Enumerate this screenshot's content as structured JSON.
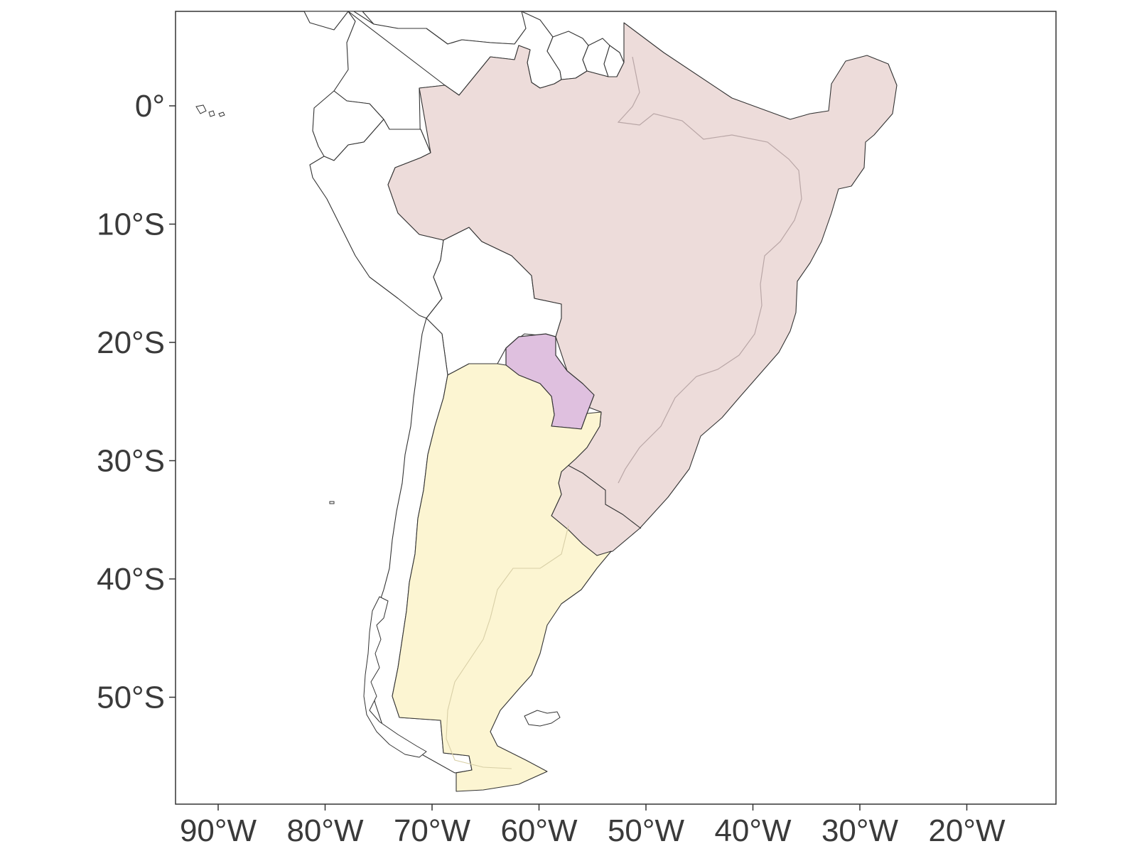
{
  "map": {
    "axes": {
      "x": {
        "ticks": [
          {
            "lon": -90,
            "label": "90°W"
          },
          {
            "lon": -80,
            "label": "80°W"
          },
          {
            "lon": -70,
            "label": "70°W"
          },
          {
            "lon": -60,
            "label": "60°W"
          },
          {
            "lon": -50,
            "label": "50°W"
          },
          {
            "lon": -40,
            "label": "40°W"
          },
          {
            "lon": -30,
            "label": "30°W"
          },
          {
            "lon": -20,
            "label": "20°W"
          }
        ]
      },
      "y": {
        "ticks": [
          {
            "lat": 0,
            "label": "0°"
          },
          {
            "lat": -10,
            "label": "10°S"
          },
          {
            "lat": -20,
            "label": "20°S"
          },
          {
            "lat": -30,
            "label": "30°S"
          },
          {
            "lat": -40,
            "label": "40°S"
          },
          {
            "lat": -50,
            "label": "50°S"
          }
        ]
      }
    },
    "colors": {
      "highlight_brazil_region": "#eddcda",
      "highlight_argentina": "#fcf5d2",
      "highlight_paraguay": "#dfc0df",
      "borders": "#333333",
      "internal_lines": "#b9a6a6",
      "frame": "#333333",
      "tick_text": "#3a3a3a"
    },
    "regions_highlighted": [
      "brazil-region",
      "argentina",
      "paraguay"
    ]
  }
}
